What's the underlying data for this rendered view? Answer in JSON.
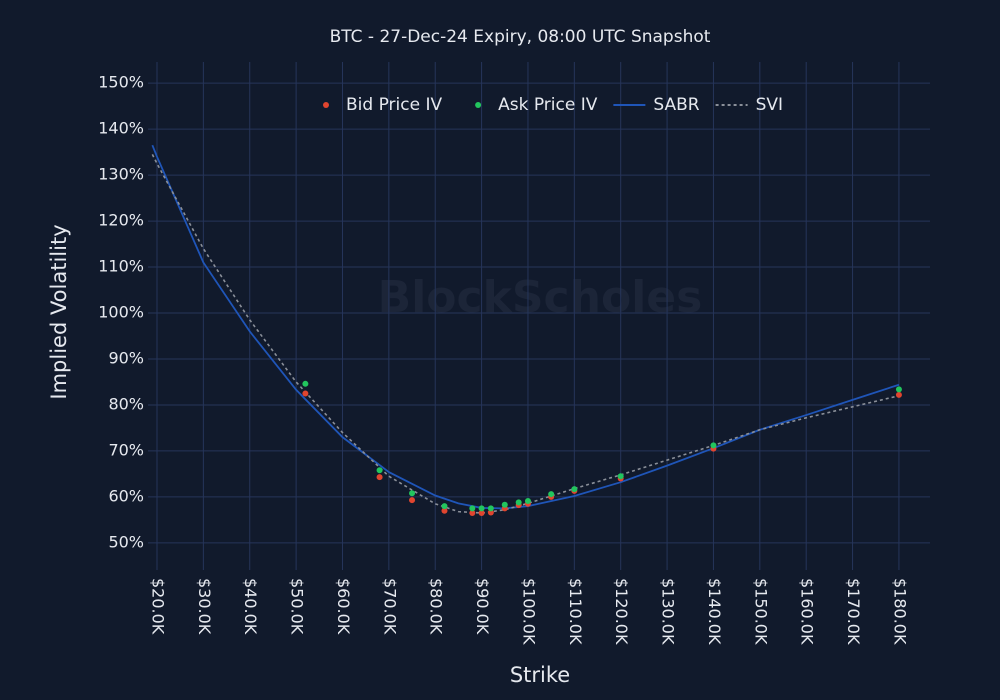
{
  "chart_data": {
    "type": "scatter-line",
    "title": "BTC - 27-Dec-24 Expiry, 08:00 UTC Snapshot",
    "watermark": "BlockScholes",
    "x_label": "Strike",
    "y_label": "Implied Volatility",
    "xlim": [
      18060,
      186700
    ],
    "ylim": [
      44.1,
      154.6
    ],
    "grid": true,
    "legend": "top",
    "xticks": [
      {
        "value": 20000,
        "label": "$20.0K"
      },
      {
        "value": 30000,
        "label": "$30.0K"
      },
      {
        "value": 40000,
        "label": "$40.0K"
      },
      {
        "value": 50000,
        "label": "$50.0K"
      },
      {
        "value": 60000,
        "label": "$60.0K"
      },
      {
        "value": 70000,
        "label": "$70.0K"
      },
      {
        "value": 80000,
        "label": "$80.0K"
      },
      {
        "value": 90000,
        "label": "$90.0K"
      },
      {
        "value": 100000,
        "label": "$100.0K"
      },
      {
        "value": 110000,
        "label": "$110.0K"
      },
      {
        "value": 120000,
        "label": "$120.0K"
      },
      {
        "value": 130000,
        "label": "$130.0K"
      },
      {
        "value": 140000,
        "label": "$140.0K"
      },
      {
        "value": 150000,
        "label": "$150.0K"
      },
      {
        "value": 160000,
        "label": "$160.0K"
      },
      {
        "value": 170000,
        "label": "$170.0K"
      },
      {
        "value": 180000,
        "label": "$180.0K"
      }
    ],
    "yticks": [
      {
        "value": 50,
        "label": "50%"
      },
      {
        "value": 60,
        "label": "60%"
      },
      {
        "value": 70,
        "label": "70%"
      },
      {
        "value": 80,
        "label": "80%"
      },
      {
        "value": 90,
        "label": "90%"
      },
      {
        "value": 100,
        "label": "100%"
      },
      {
        "value": 110,
        "label": "110%"
      },
      {
        "value": 120,
        "label": "120%"
      },
      {
        "value": 130,
        "label": "130%"
      },
      {
        "value": 140,
        "label": "140%"
      },
      {
        "value": 150,
        "label": "150%"
      }
    ],
    "series": [
      {
        "name": "Bid Price IV",
        "color": "#e0452f",
        "mode": "markers",
        "x": [
          52000,
          68000,
          75000,
          82000,
          88000,
          90000,
          92000,
          95000,
          98000,
          100000,
          105000,
          110000,
          120000,
          140000,
          180000
        ],
        "values": [
          82.5,
          64.3,
          59.3,
          57.0,
          56.5,
          56.5,
          56.6,
          57.5,
          58.2,
          58.5,
          60.0,
          61.3,
          64.0,
          70.5,
          82.2
        ]
      },
      {
        "name": "Ask Price IV",
        "color": "#22c55e",
        "mode": "markers",
        "x": [
          52000,
          68000,
          75000,
          82000,
          88000,
          90000,
          92000,
          95000,
          98000,
          100000,
          105000,
          110000,
          120000,
          140000,
          180000
        ],
        "values": [
          84.6,
          65.8,
          60.8,
          58.0,
          57.5,
          57.5,
          57.5,
          58.3,
          58.8,
          59.1,
          60.6,
          61.7,
          64.5,
          71.2,
          83.4
        ]
      },
      {
        "name": "SABR",
        "color": "#1f55b8",
        "mode": "lines",
        "dash": "solid",
        "x": [
          19000,
          20000,
          30000,
          40000,
          50000,
          60000,
          70000,
          80000,
          85000,
          90000,
          95000,
          100000,
          110000,
          120000,
          130000,
          140000,
          150000,
          160000,
          170000,
          180000
        ],
        "values": [
          136.5,
          134,
          111,
          96,
          83.3,
          73,
          65.4,
          60.3,
          58.6,
          57.6,
          57.5,
          58.0,
          60.2,
          63.2,
          66.8,
          70.6,
          74.6,
          77.8,
          81.1,
          84.4
        ]
      },
      {
        "name": "SVI",
        "color": "#8a8f99",
        "mode": "lines",
        "dash": "dot",
        "x": [
          19000,
          20000,
          30000,
          40000,
          50000,
          60000,
          70000,
          80000,
          85000,
          90000,
          95000,
          100000,
          110000,
          120000,
          130000,
          140000,
          150000,
          160000,
          170000,
          180000
        ],
        "values": [
          134.5,
          132.5,
          114,
          98.5,
          85,
          74,
          64.5,
          58.5,
          56.8,
          56.5,
          57.2,
          58.6,
          61.8,
          64.8,
          68,
          71.2,
          74.6,
          77.2,
          79.6,
          82
        ]
      }
    ]
  }
}
